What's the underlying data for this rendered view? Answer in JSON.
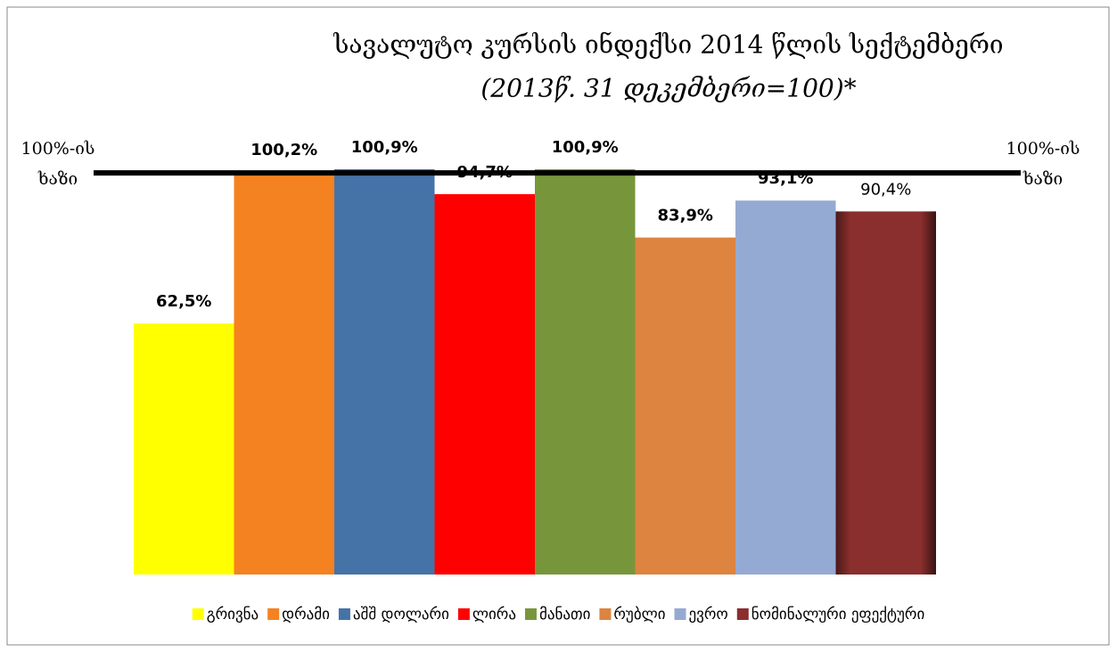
{
  "chart_data": {
    "type": "bar",
    "title": "სავალუტო კურსის ინდექსი 2014 წლის სექტემბერი",
    "subtitle": "(2013წ. 31 დეკემბერი=100)*",
    "categories": [
      "გრივნა",
      "დრამი",
      "აშშ დოლარი",
      "ლირა",
      "მანათი",
      "რუბლი",
      "ევრო",
      "ნომინალური ეფექტური"
    ],
    "values": [
      62.5,
      100.2,
      100.9,
      94.7,
      100.9,
      83.9,
      93.1,
      90.4
    ],
    "value_labels": [
      "62,5%",
      "100,2%",
      "100,9%",
      "94,7%",
      "100,9%",
      "83,9%",
      "93,1%",
      "90,4%"
    ],
    "colors": [
      "#ffff00",
      "#f58220",
      "#4673a7",
      "#ff0000",
      "#77963b",
      "#dd8440",
      "#95aad3",
      "#8b2e2e"
    ],
    "ylim": [
      0,
      110
    ],
    "reference_line": {
      "value": 100,
      "label": "100%-ის ხაზი"
    }
  }
}
